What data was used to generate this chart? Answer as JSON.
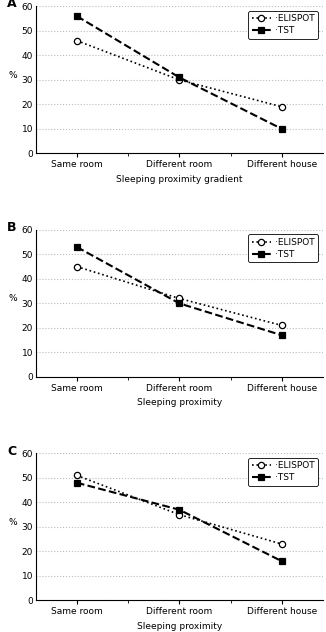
{
  "panels": [
    {
      "label": "A",
      "xlabel": "Sleeping proximity gradient",
      "elispot": [
        46,
        30,
        19
      ],
      "tst": [
        56,
        31,
        10
      ],
      "ylim": [
        0,
        60
      ],
      "yticks": [
        0,
        10,
        20,
        30,
        40,
        50,
        60
      ]
    },
    {
      "label": "B",
      "xlabel": "Sleeping proximity",
      "elispot": [
        45,
        32,
        21
      ],
      "tst": [
        53,
        30,
        17
      ],
      "ylim": [
        0,
        60
      ],
      "yticks": [
        0,
        10,
        20,
        30,
        40,
        50,
        60
      ]
    },
    {
      "label": "C",
      "xlabel": "Sleeping proximity",
      "elispot": [
        51,
        35,
        23
      ],
      "tst": [
        48,
        37,
        16
      ],
      "ylim": [
        0,
        60
      ],
      "yticks": [
        0,
        10,
        20,
        30,
        40,
        50,
        60
      ]
    }
  ],
  "x_labels": [
    "Same room",
    "Different room",
    "Different house"
  ],
  "ylabel": "%",
  "elispot_label": "·ELISPOT",
  "tst_label": "·TST",
  "line_color": "black",
  "background_color": "#ffffff",
  "grid_color": "#bbbbbb",
  "legend_fontsize": 6.5,
  "tick_fontsize": 6.5,
  "axis_label_fontsize": 6.5,
  "panel_label_fontsize": 9
}
